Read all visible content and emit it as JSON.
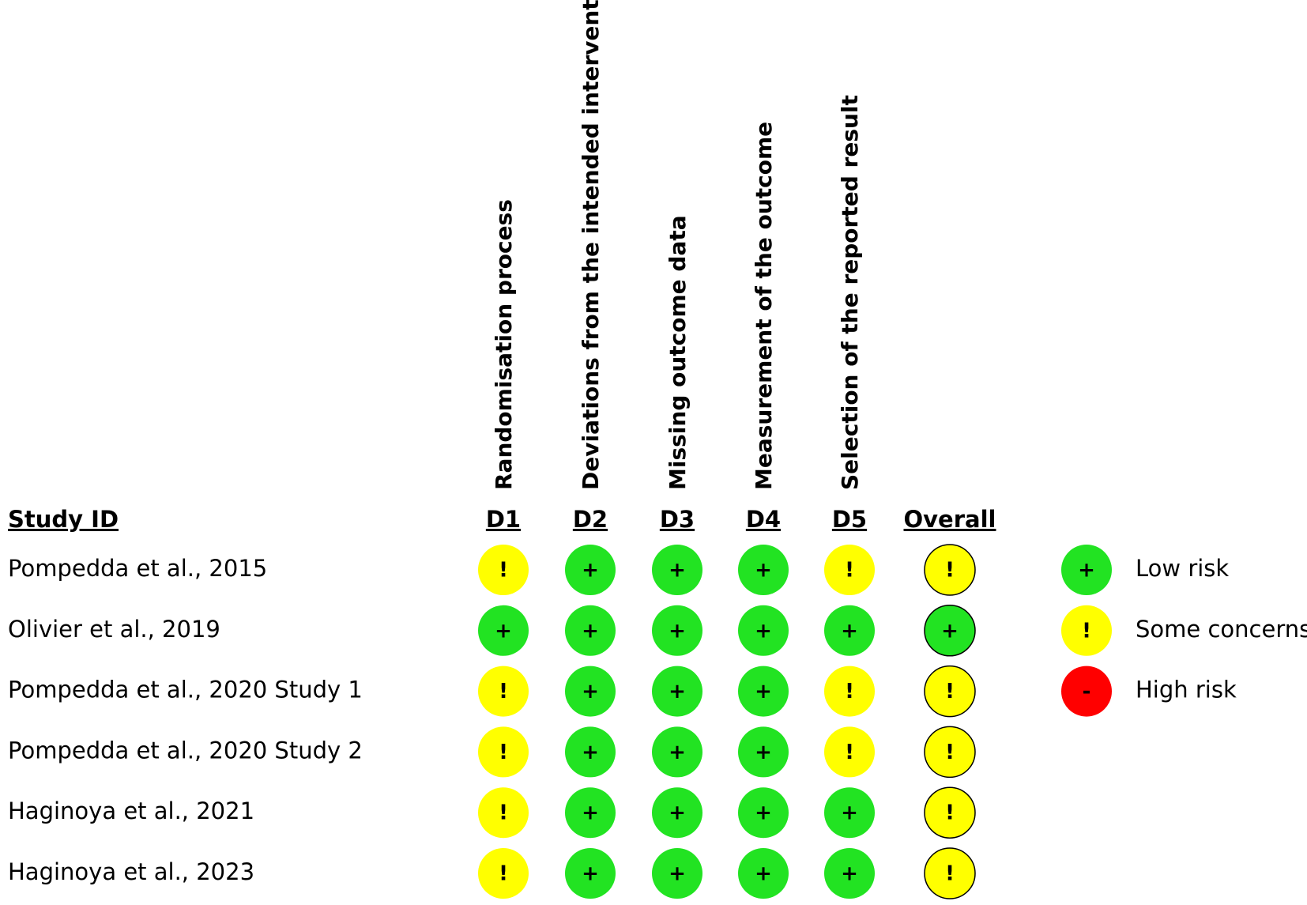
{
  "header": {
    "study": "Study ID",
    "overall": "Overall"
  },
  "domains": [
    {
      "id": "D1",
      "label": "Randomisation process"
    },
    {
      "id": "D2",
      "label": "Deviations from the intended interventions"
    },
    {
      "id": "D3",
      "label": "Missing outcome data"
    },
    {
      "id": "D4",
      "label": "Measurement of the outcome"
    },
    {
      "id": "D5",
      "label": "Selection of the reported result"
    }
  ],
  "rows": [
    {
      "study": "Pompedda et al., 2015",
      "judgements": [
        "!",
        "+",
        "+",
        "+",
        "!"
      ],
      "overall": "!"
    },
    {
      "study": "Olivier et al., 2019",
      "judgements": [
        "+",
        "+",
        "+",
        "+",
        "+"
      ],
      "overall": "+"
    },
    {
      "study": "Pompedda et al., 2020 Study 1",
      "judgements": [
        "!",
        "+",
        "+",
        "+",
        "!"
      ],
      "overall": "!"
    },
    {
      "study": "Pompedda et al., 2020 Study 2",
      "judgements": [
        "!",
        "+",
        "+",
        "+",
        "!"
      ],
      "overall": "!"
    },
    {
      "study": "Haginoya et al., 2021",
      "judgements": [
        "!",
        "+",
        "+",
        "+",
        "+"
      ],
      "overall": "!"
    },
    {
      "study": "Haginoya et al., 2023",
      "judgements": [
        "!",
        "+",
        "+",
        "+",
        "+"
      ],
      "overall": "!"
    }
  ],
  "legend": [
    {
      "symbol": "+",
      "label": "Low risk",
      "color": "#22e322"
    },
    {
      "symbol": "!",
      "label": "Some concerns",
      "color": "#ffff00"
    },
    {
      "symbol": "-",
      "label": "High risk",
      "color": "#ff0000"
    }
  ]
}
